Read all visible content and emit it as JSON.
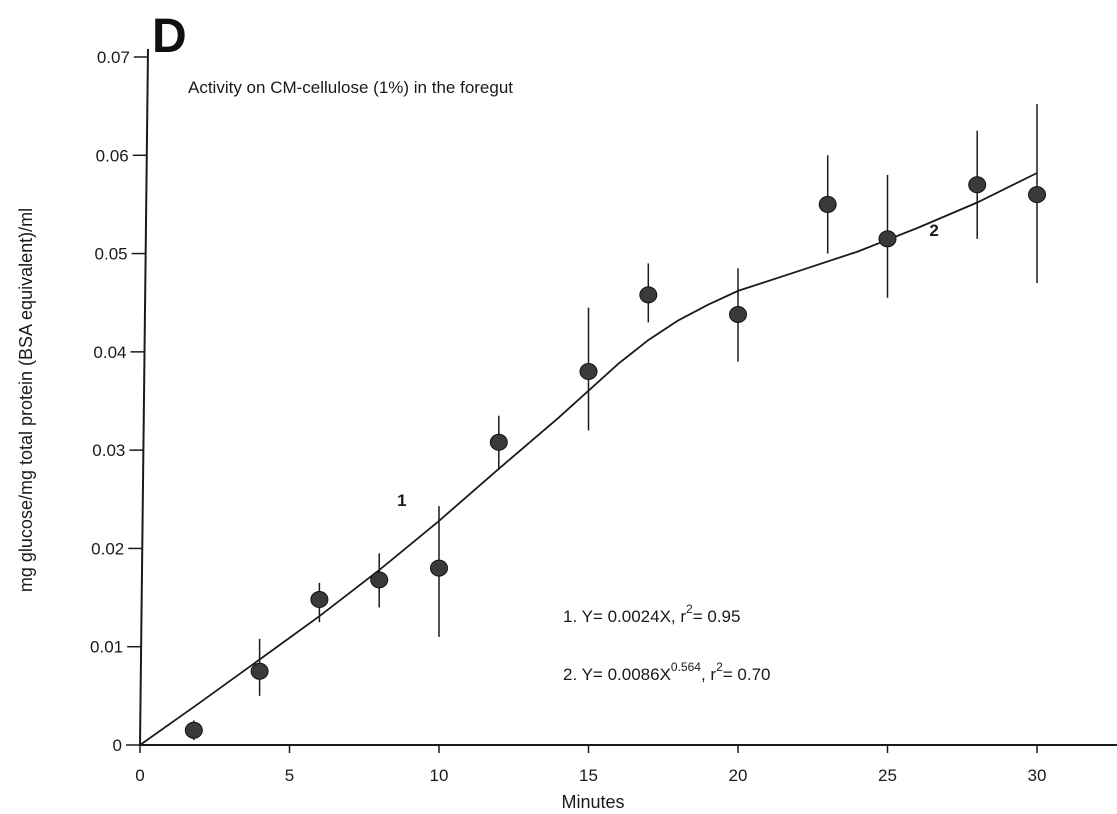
{
  "panel_label": "D",
  "chart_data": {
    "type": "scatter",
    "title": "Activity on CM-cellulose (1%) in the foregut",
    "xlabel": "Minutes",
    "ylabel": "mg glucose/mg total protein (BSA equivalent)/ml",
    "xlim": [
      0,
      33
    ],
    "ylim": [
      0,
      0.07
    ],
    "x_ticks": [
      0,
      5,
      10,
      15,
      20,
      25,
      30
    ],
    "x_tick_labels": [
      "0",
      "5",
      "10",
      "15",
      "20",
      "25",
      "30"
    ],
    "y_ticks": [
      0,
      0.01,
      0.02,
      0.03,
      0.04,
      0.05,
      0.06,
      0.07
    ],
    "y_tick_labels": [
      "0",
      "0.01",
      "0.02",
      "0.03",
      "0.04",
      "0.05",
      "0.06",
      "0.07"
    ],
    "grid": false,
    "legend": "none",
    "points": [
      {
        "x": 1.8,
        "y": 0.0015,
        "err_low": 0.0005,
        "err_high": 0.0025
      },
      {
        "x": 4,
        "y": 0.0075,
        "err_low": 0.005,
        "err_high": 0.0108
      },
      {
        "x": 6,
        "y": 0.0148,
        "err_low": 0.0125,
        "err_high": 0.0165
      },
      {
        "x": 8,
        "y": 0.0168,
        "err_low": 0.014,
        "err_high": 0.0195
      },
      {
        "x": 10,
        "y": 0.018,
        "err_low": 0.011,
        "err_high": 0.0243
      },
      {
        "x": 12,
        "y": 0.0308,
        "err_low": 0.028,
        "err_high": 0.0335
      },
      {
        "x": 15,
        "y": 0.038,
        "err_low": 0.032,
        "err_high": 0.0445
      },
      {
        "x": 17,
        "y": 0.0458,
        "err_low": 0.043,
        "err_high": 0.049
      },
      {
        "x": 20,
        "y": 0.0438,
        "err_low": 0.039,
        "err_high": 0.0485
      },
      {
        "x": 23,
        "y": 0.055,
        "err_low": 0.05,
        "err_high": 0.06
      },
      {
        "x": 25,
        "y": 0.0515,
        "err_low": 0.0455,
        "err_high": 0.058
      },
      {
        "x": 28,
        "y": 0.057,
        "err_low": 0.0515,
        "err_high": 0.0625
      },
      {
        "x": 30,
        "y": 0.056,
        "err_low": 0.047,
        "err_high": 0.0652
      }
    ],
    "fit_curve": {
      "x": [
        0,
        2,
        4,
        6,
        8,
        10,
        12,
        14,
        16,
        17,
        18,
        19,
        20,
        22,
        24,
        26,
        28,
        30
      ],
      "y": [
        0,
        0.0043,
        0.0087,
        0.0131,
        0.0178,
        0.0228,
        0.0281,
        0.0333,
        0.0388,
        0.0412,
        0.0432,
        0.0448,
        0.0462,
        0.0482,
        0.0502,
        0.0526,
        0.0552,
        0.0582
      ]
    },
    "curve_labels": [
      {
        "text": "1",
        "x": 8.6,
        "y": 0.0243
      },
      {
        "text": "2",
        "x": 26.4,
        "y": 0.0518
      }
    ],
    "equations": [
      {
        "prefix": "1. Y= 0.0024X, r",
        "sup": "2",
        "suffix": "= 0.95"
      },
      {
        "prefix": "2. Y= 0.0086X",
        "sup": "0.564",
        "middle": ", r",
        "sup2": "2",
        "suffix": "= 0.70"
      }
    ]
  }
}
